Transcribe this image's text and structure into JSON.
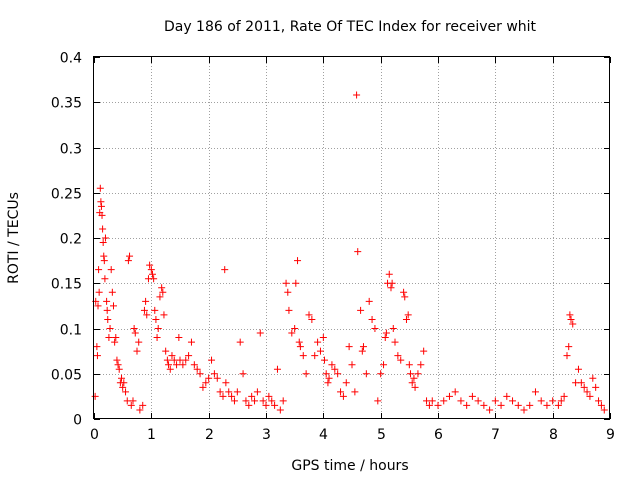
{
  "chart_data": {
    "type": "scatter",
    "title": "Day 186 of 2011, Rate Of TEC Index for receiver whit",
    "xlabel": "GPS time / hours",
    "ylabel": "ROTI / TECUs",
    "xlim": [
      0,
      9
    ],
    "ylim": [
      0,
      0.4
    ],
    "grid": true,
    "marker": "plus",
    "color": "#ff0000",
    "x_ticks": [
      {
        "value": 0,
        "label": "0"
      },
      {
        "value": 1,
        "label": "1"
      },
      {
        "value": 2,
        "label": "2"
      },
      {
        "value": 3,
        "label": "3"
      },
      {
        "value": 4,
        "label": "4"
      },
      {
        "value": 5,
        "label": "5"
      },
      {
        "value": 6,
        "label": "6"
      },
      {
        "value": 7,
        "label": "7"
      },
      {
        "value": 8,
        "label": "8"
      },
      {
        "value": 9,
        "label": "9"
      }
    ],
    "y_ticks": [
      {
        "value": 0,
        "label": "0"
      },
      {
        "value": 0.05,
        "label": "0.05"
      },
      {
        "value": 0.1,
        "label": "0.1"
      },
      {
        "value": 0.15,
        "label": "0.15"
      },
      {
        "value": 0.2,
        "label": "0.2"
      },
      {
        "value": 0.25,
        "label": "0.25"
      },
      {
        "value": 0.3,
        "label": "0.3"
      },
      {
        "value": 0.35,
        "label": "0.35"
      },
      {
        "value": 0.4,
        "label": "0.4"
      }
    ],
    "series": [
      {
        "name": "ROTI",
        "points": [
          [
            0.02,
            0.025
          ],
          [
            0.03,
            0.13
          ],
          [
            0.05,
            0.08
          ],
          [
            0.06,
            0.07
          ],
          [
            0.07,
            0.125
          ],
          [
            0.08,
            0.165
          ],
          [
            0.09,
            0.14
          ],
          [
            0.1,
            0.228
          ],
          [
            0.11,
            0.255
          ],
          [
            0.12,
            0.24
          ],
          [
            0.13,
            0.235
          ],
          [
            0.14,
            0.225
          ],
          [
            0.15,
            0.21
          ],
          [
            0.16,
            0.195
          ],
          [
            0.17,
            0.18
          ],
          [
            0.18,
            0.175
          ],
          [
            0.19,
            0.155
          ],
          [
            0.2,
            0.2
          ],
          [
            0.22,
            0.13
          ],
          [
            0.23,
            0.12
          ],
          [
            0.24,
            0.11
          ],
          [
            0.26,
            0.09
          ],
          [
            0.28,
            0.1
          ],
          [
            0.3,
            0.165
          ],
          [
            0.32,
            0.14
          ],
          [
            0.34,
            0.125
          ],
          [
            0.36,
            0.085
          ],
          [
            0.38,
            0.09
          ],
          [
            0.4,
            0.065
          ],
          [
            0.42,
            0.06
          ],
          [
            0.44,
            0.055
          ],
          [
            0.46,
            0.04
          ],
          [
            0.48,
            0.045
          ],
          [
            0.5,
            0.035
          ],
          [
            0.52,
            0.04
          ],
          [
            0.55,
            0.03
          ],
          [
            0.58,
            0.02
          ],
          [
            0.6,
            0.175
          ],
          [
            0.62,
            0.18
          ],
          [
            0.65,
            0.015
          ],
          [
            0.68,
            0.02
          ],
          [
            0.7,
            0.1
          ],
          [
            0.72,
            0.095
          ],
          [
            0.75,
            0.075
          ],
          [
            0.78,
            0.085
          ],
          [
            0.8,
            0.01
          ],
          [
            0.85,
            0.015
          ],
          [
            0.88,
            0.12
          ],
          [
            0.9,
            0.13
          ],
          [
            0.92,
            0.115
          ],
          [
            0.95,
            0.155
          ],
          [
            0.97,
            0.17
          ],
          [
            1.0,
            0.165
          ],
          [
            1.02,
            0.16
          ],
          [
            1.04,
            0.155
          ],
          [
            1.06,
            0.12
          ],
          [
            1.08,
            0.11
          ],
          [
            1.1,
            0.09
          ],
          [
            1.12,
            0.1
          ],
          [
            1.15,
            0.135
          ],
          [
            1.18,
            0.145
          ],
          [
            1.2,
            0.14
          ],
          [
            1.22,
            0.115
          ],
          [
            1.25,
            0.075
          ],
          [
            1.28,
            0.065
          ],
          [
            1.3,
            0.06
          ],
          [
            1.33,
            0.055
          ],
          [
            1.36,
            0.07
          ],
          [
            1.4,
            0.065
          ],
          [
            1.44,
            0.06
          ],
          [
            1.48,
            0.09
          ],
          [
            1.5,
            0.065
          ],
          [
            1.55,
            0.06
          ],
          [
            1.6,
            0.065
          ],
          [
            1.65,
            0.07
          ],
          [
            1.7,
            0.085
          ],
          [
            1.75,
            0.06
          ],
          [
            1.8,
            0.055
          ],
          [
            1.85,
            0.05
          ],
          [
            1.9,
            0.035
          ],
          [
            1.95,
            0.04
          ],
          [
            2.0,
            0.045
          ],
          [
            2.05,
            0.065
          ],
          [
            2.1,
            0.05
          ],
          [
            2.15,
            0.045
          ],
          [
            2.2,
            0.03
          ],
          [
            2.25,
            0.025
          ],
          [
            2.28,
            0.165
          ],
          [
            2.3,
            0.04
          ],
          [
            2.35,
            0.03
          ],
          [
            2.4,
            0.025
          ],
          [
            2.45,
            0.02
          ],
          [
            2.5,
            0.03
          ],
          [
            2.55,
            0.085
          ],
          [
            2.6,
            0.05
          ],
          [
            2.65,
            0.02
          ],
          [
            2.7,
            0.015
          ],
          [
            2.75,
            0.025
          ],
          [
            2.8,
            0.02
          ],
          [
            2.85,
            0.03
          ],
          [
            2.9,
            0.095
          ],
          [
            2.95,
            0.02
          ],
          [
            3.0,
            0.015
          ],
          [
            3.05,
            0.025
          ],
          [
            3.1,
            0.02
          ],
          [
            3.15,
            0.015
          ],
          [
            3.2,
            0.055
          ],
          [
            3.25,
            0.01
          ],
          [
            3.3,
            0.02
          ],
          [
            3.35,
            0.15
          ],
          [
            3.38,
            0.14
          ],
          [
            3.4,
            0.12
          ],
          [
            3.45,
            0.095
          ],
          [
            3.5,
            0.1
          ],
          [
            3.52,
            0.15
          ],
          [
            3.55,
            0.175
          ],
          [
            3.58,
            0.085
          ],
          [
            3.6,
            0.08
          ],
          [
            3.65,
            0.07
          ],
          [
            3.7,
            0.05
          ],
          [
            3.75,
            0.115
          ],
          [
            3.8,
            0.11
          ],
          [
            3.85,
            0.07
          ],
          [
            3.9,
            0.085
          ],
          [
            3.95,
            0.075
          ],
          [
            4.0,
            0.09
          ],
          [
            4.02,
            0.065
          ],
          [
            4.05,
            0.05
          ],
          [
            4.08,
            0.04
          ],
          [
            4.1,
            0.045
          ],
          [
            4.15,
            0.06
          ],
          [
            4.2,
            0.055
          ],
          [
            4.25,
            0.05
          ],
          [
            4.3,
            0.03
          ],
          [
            4.35,
            0.025
          ],
          [
            4.4,
            0.04
          ],
          [
            4.45,
            0.08
          ],
          [
            4.5,
            0.06
          ],
          [
            4.55,
            0.03
          ],
          [
            4.58,
            0.358
          ],
          [
            4.6,
            0.185
          ],
          [
            4.65,
            0.12
          ],
          [
            4.68,
            0.075
          ],
          [
            4.7,
            0.08
          ],
          [
            4.75,
            0.05
          ],
          [
            4.8,
            0.13
          ],
          [
            4.85,
            0.11
          ],
          [
            4.9,
            0.1
          ],
          [
            4.95,
            0.02
          ],
          [
            5.0,
            0.05
          ],
          [
            5.05,
            0.06
          ],
          [
            5.08,
            0.09
          ],
          [
            5.1,
            0.095
          ],
          [
            5.12,
            0.15
          ],
          [
            5.15,
            0.16
          ],
          [
            5.18,
            0.145
          ],
          [
            5.2,
            0.15
          ],
          [
            5.22,
            0.1
          ],
          [
            5.25,
            0.085
          ],
          [
            5.3,
            0.07
          ],
          [
            5.35,
            0.065
          ],
          [
            5.4,
            0.14
          ],
          [
            5.42,
            0.135
          ],
          [
            5.45,
            0.11
          ],
          [
            5.48,
            0.115
          ],
          [
            5.5,
            0.06
          ],
          [
            5.52,
            0.05
          ],
          [
            5.55,
            0.04
          ],
          [
            5.58,
            0.045
          ],
          [
            5.6,
            0.035
          ],
          [
            5.65,
            0.05
          ],
          [
            5.7,
            0.06
          ],
          [
            5.75,
            0.075
          ],
          [
            5.8,
            0.02
          ],
          [
            5.85,
            0.015
          ],
          [
            5.9,
            0.02
          ],
          [
            6.0,
            0.015
          ],
          [
            6.1,
            0.02
          ],
          [
            6.2,
            0.025
          ],
          [
            6.3,
            0.03
          ],
          [
            6.4,
            0.02
          ],
          [
            6.5,
            0.015
          ],
          [
            6.6,
            0.025
          ],
          [
            6.7,
            0.02
          ],
          [
            6.8,
            0.015
          ],
          [
            6.9,
            0.01
          ],
          [
            7.0,
            0.02
          ],
          [
            7.1,
            0.015
          ],
          [
            7.2,
            0.025
          ],
          [
            7.3,
            0.02
          ],
          [
            7.4,
            0.015
          ],
          [
            7.5,
            0.01
          ],
          [
            7.6,
            0.015
          ],
          [
            7.7,
            0.03
          ],
          [
            7.8,
            0.02
          ],
          [
            7.9,
            0.015
          ],
          [
            8.0,
            0.02
          ],
          [
            8.1,
            0.015
          ],
          [
            8.15,
            0.02
          ],
          [
            8.2,
            0.025
          ],
          [
            8.25,
            0.07
          ],
          [
            8.28,
            0.08
          ],
          [
            8.3,
            0.115
          ],
          [
            8.32,
            0.11
          ],
          [
            8.35,
            0.105
          ],
          [
            8.4,
            0.04
          ],
          [
            8.45,
            0.055
          ],
          [
            8.5,
            0.04
          ],
          [
            8.55,
            0.035
          ],
          [
            8.6,
            0.03
          ],
          [
            8.65,
            0.025
          ],
          [
            8.7,
            0.045
          ],
          [
            8.75,
            0.035
          ],
          [
            8.8,
            0.02
          ],
          [
            8.85,
            0.015
          ],
          [
            8.9,
            0.01
          ]
        ]
      }
    ]
  }
}
